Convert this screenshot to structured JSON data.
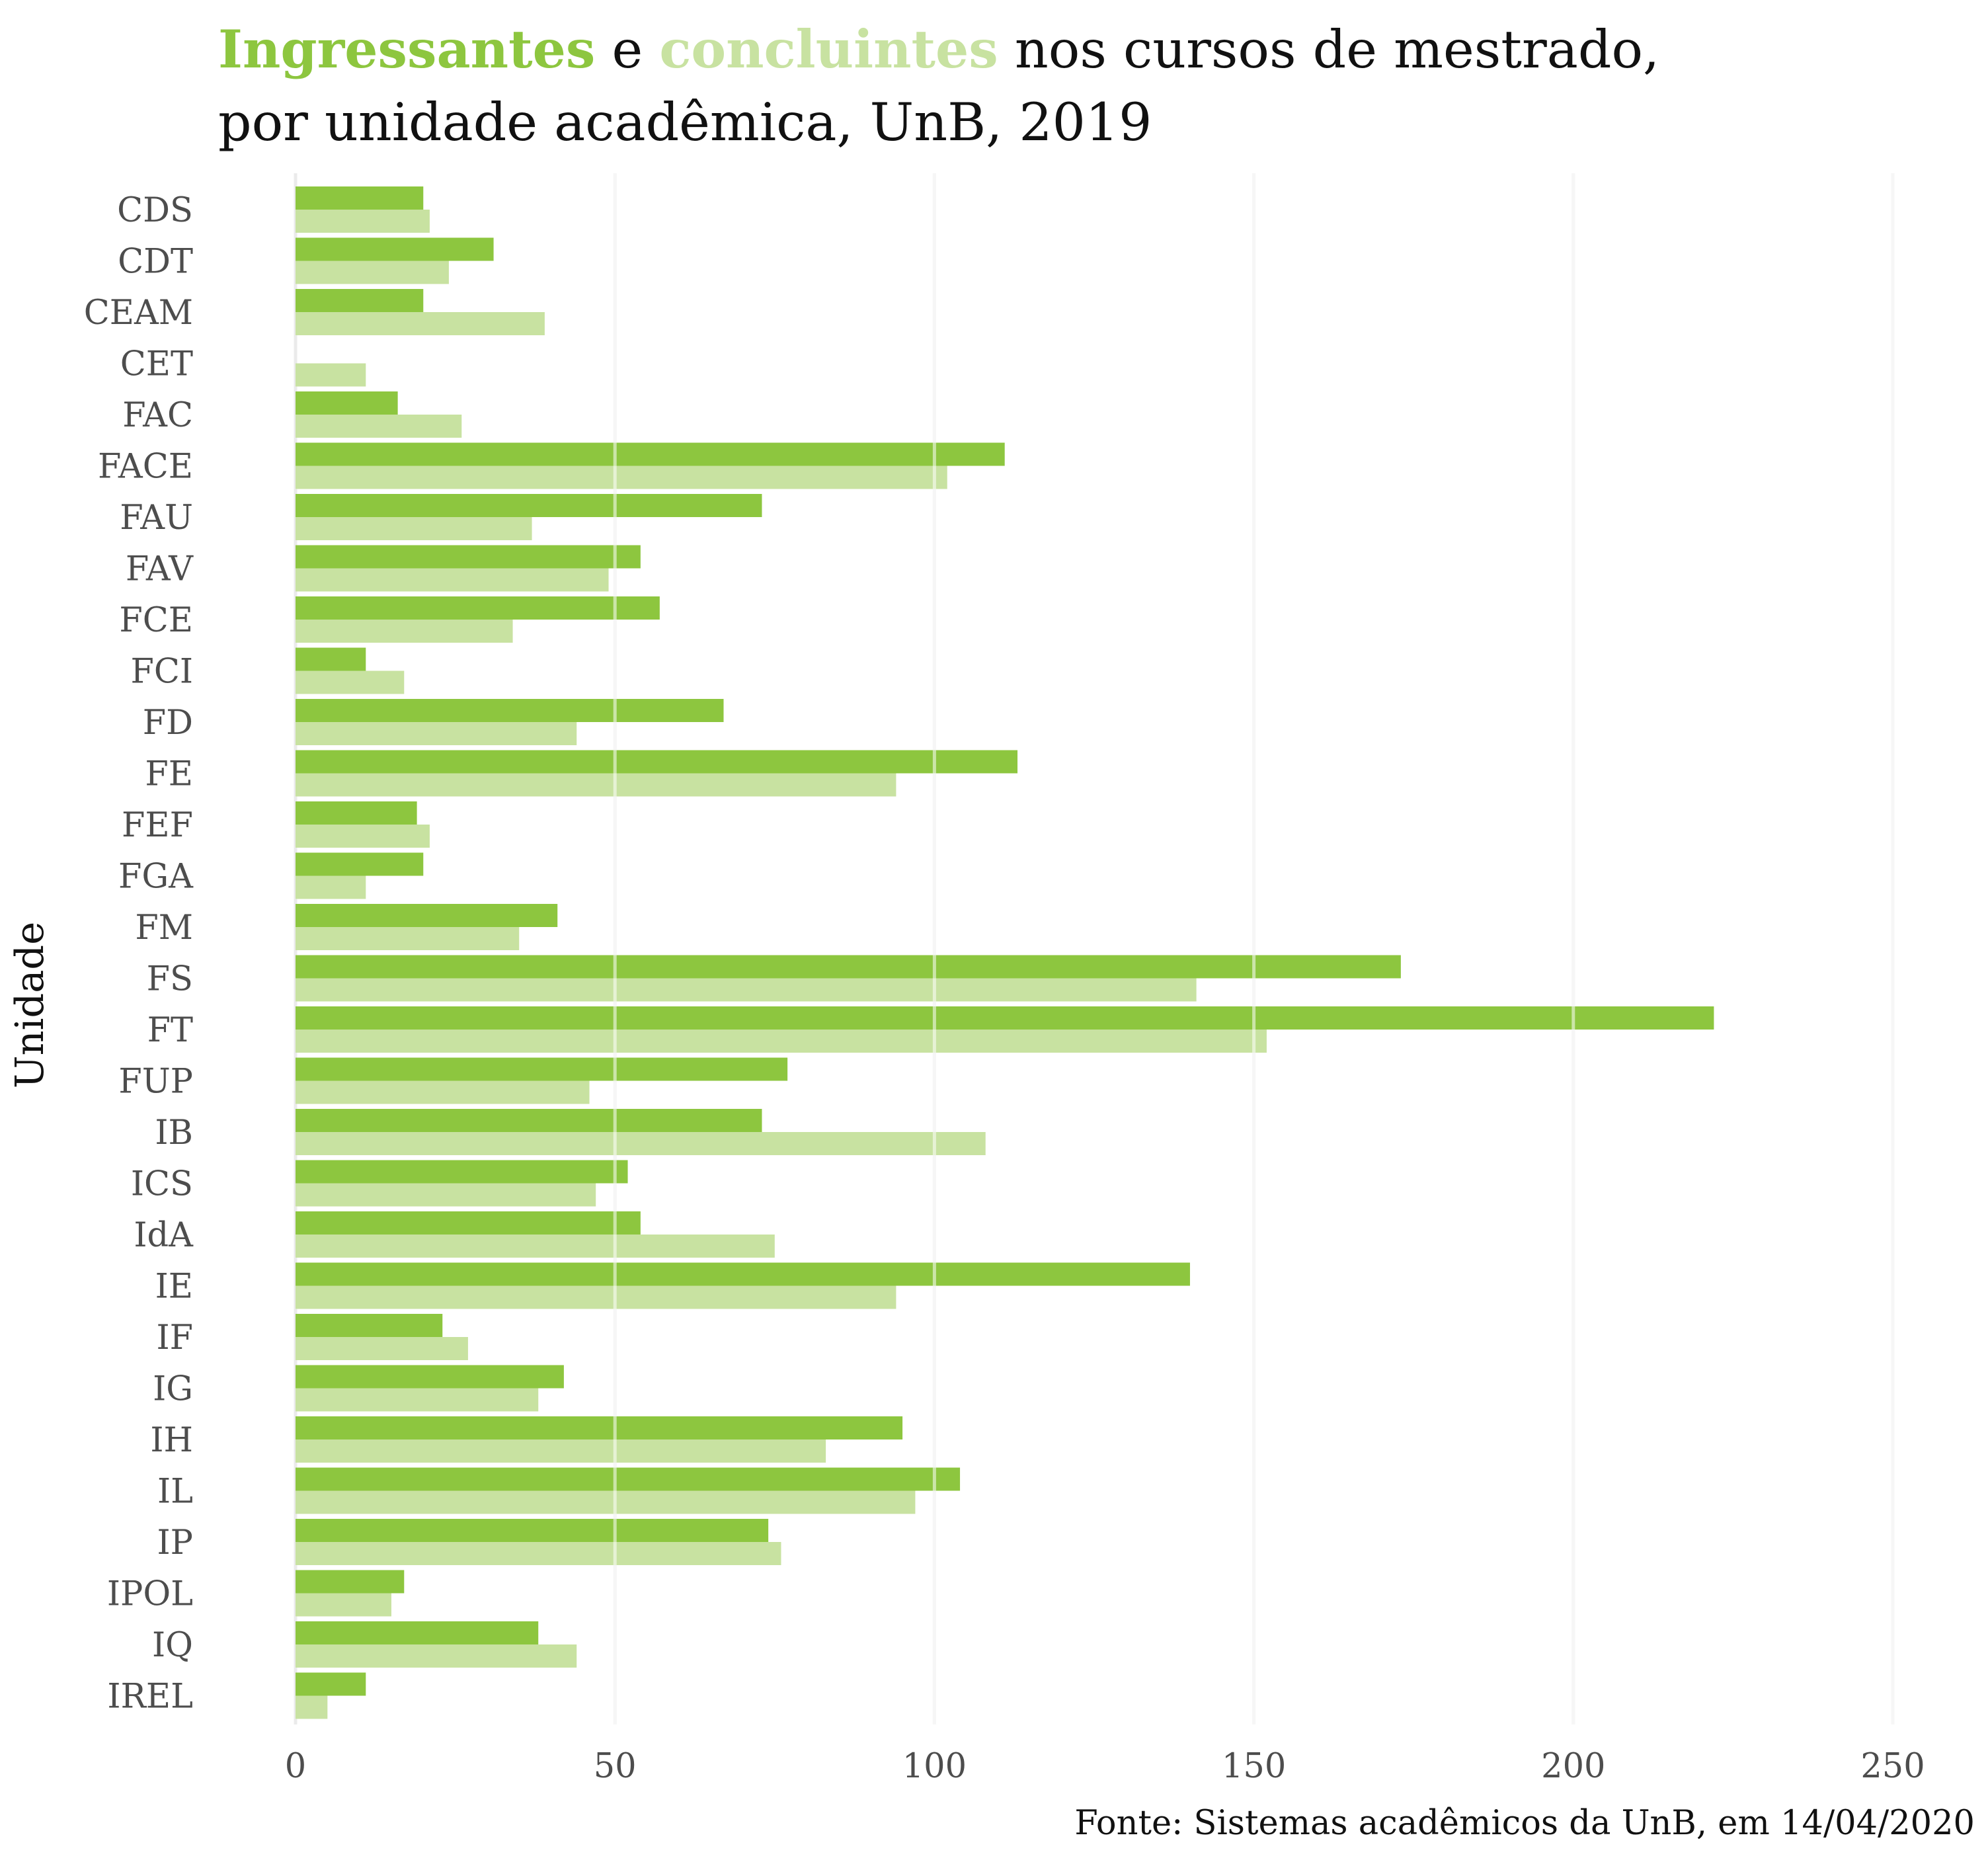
{
  "title": {
    "ingressantes": "Ingressantes",
    "e": " e ",
    "concluintes": "concluintes",
    "line1_rest": " nos cursos de mestrado,",
    "line2": "por unidade acadêmica, UnB, 2019"
  },
  "source": "Fonte: Sistemas acadêmicos da UnB, em 14/04/2020",
  "colors": {
    "ingressantes": "#8DC63F",
    "concluintes": "#C8E2A1",
    "grid": "#EBEBEB",
    "axis_text": "#4D4D4D"
  },
  "chart_data": {
    "type": "bar",
    "orientation": "horizontal",
    "ylabel": "Unidade",
    "xlabel": "",
    "xlim": [
      0,
      250
    ],
    "xticks": [
      0,
      50,
      100,
      150,
      200,
      250
    ],
    "grid": "vertical",
    "categories": [
      "CDS",
      "CDT",
      "CEAM",
      "CET",
      "FAC",
      "FACE",
      "FAU",
      "FAV",
      "FCE",
      "FCI",
      "FD",
      "FE",
      "FEF",
      "FGA",
      "FM",
      "FS",
      "FT",
      "FUP",
      "IB",
      "ICS",
      "IdA",
      "IE",
      "IF",
      "IG",
      "IH",
      "IL",
      "IP",
      "IPOL",
      "IQ",
      "IREL"
    ],
    "series": [
      {
        "name": "Ingressantes",
        "values": [
          20,
          31,
          20,
          0,
          16,
          111,
          73,
          54,
          57,
          11,
          67,
          113,
          19,
          20,
          41,
          173,
          222,
          77,
          73,
          52,
          54,
          140,
          23,
          42,
          95,
          104,
          74,
          17,
          38,
          11
        ]
      },
      {
        "name": "concluintes",
        "values": [
          21,
          24,
          39,
          11,
          26,
          102,
          37,
          49,
          34,
          17,
          44,
          94,
          21,
          11,
          35,
          141,
          152,
          46,
          108,
          47,
          75,
          94,
          27,
          38,
          83,
          97,
          76,
          15,
          44,
          5
        ]
      }
    ]
  }
}
